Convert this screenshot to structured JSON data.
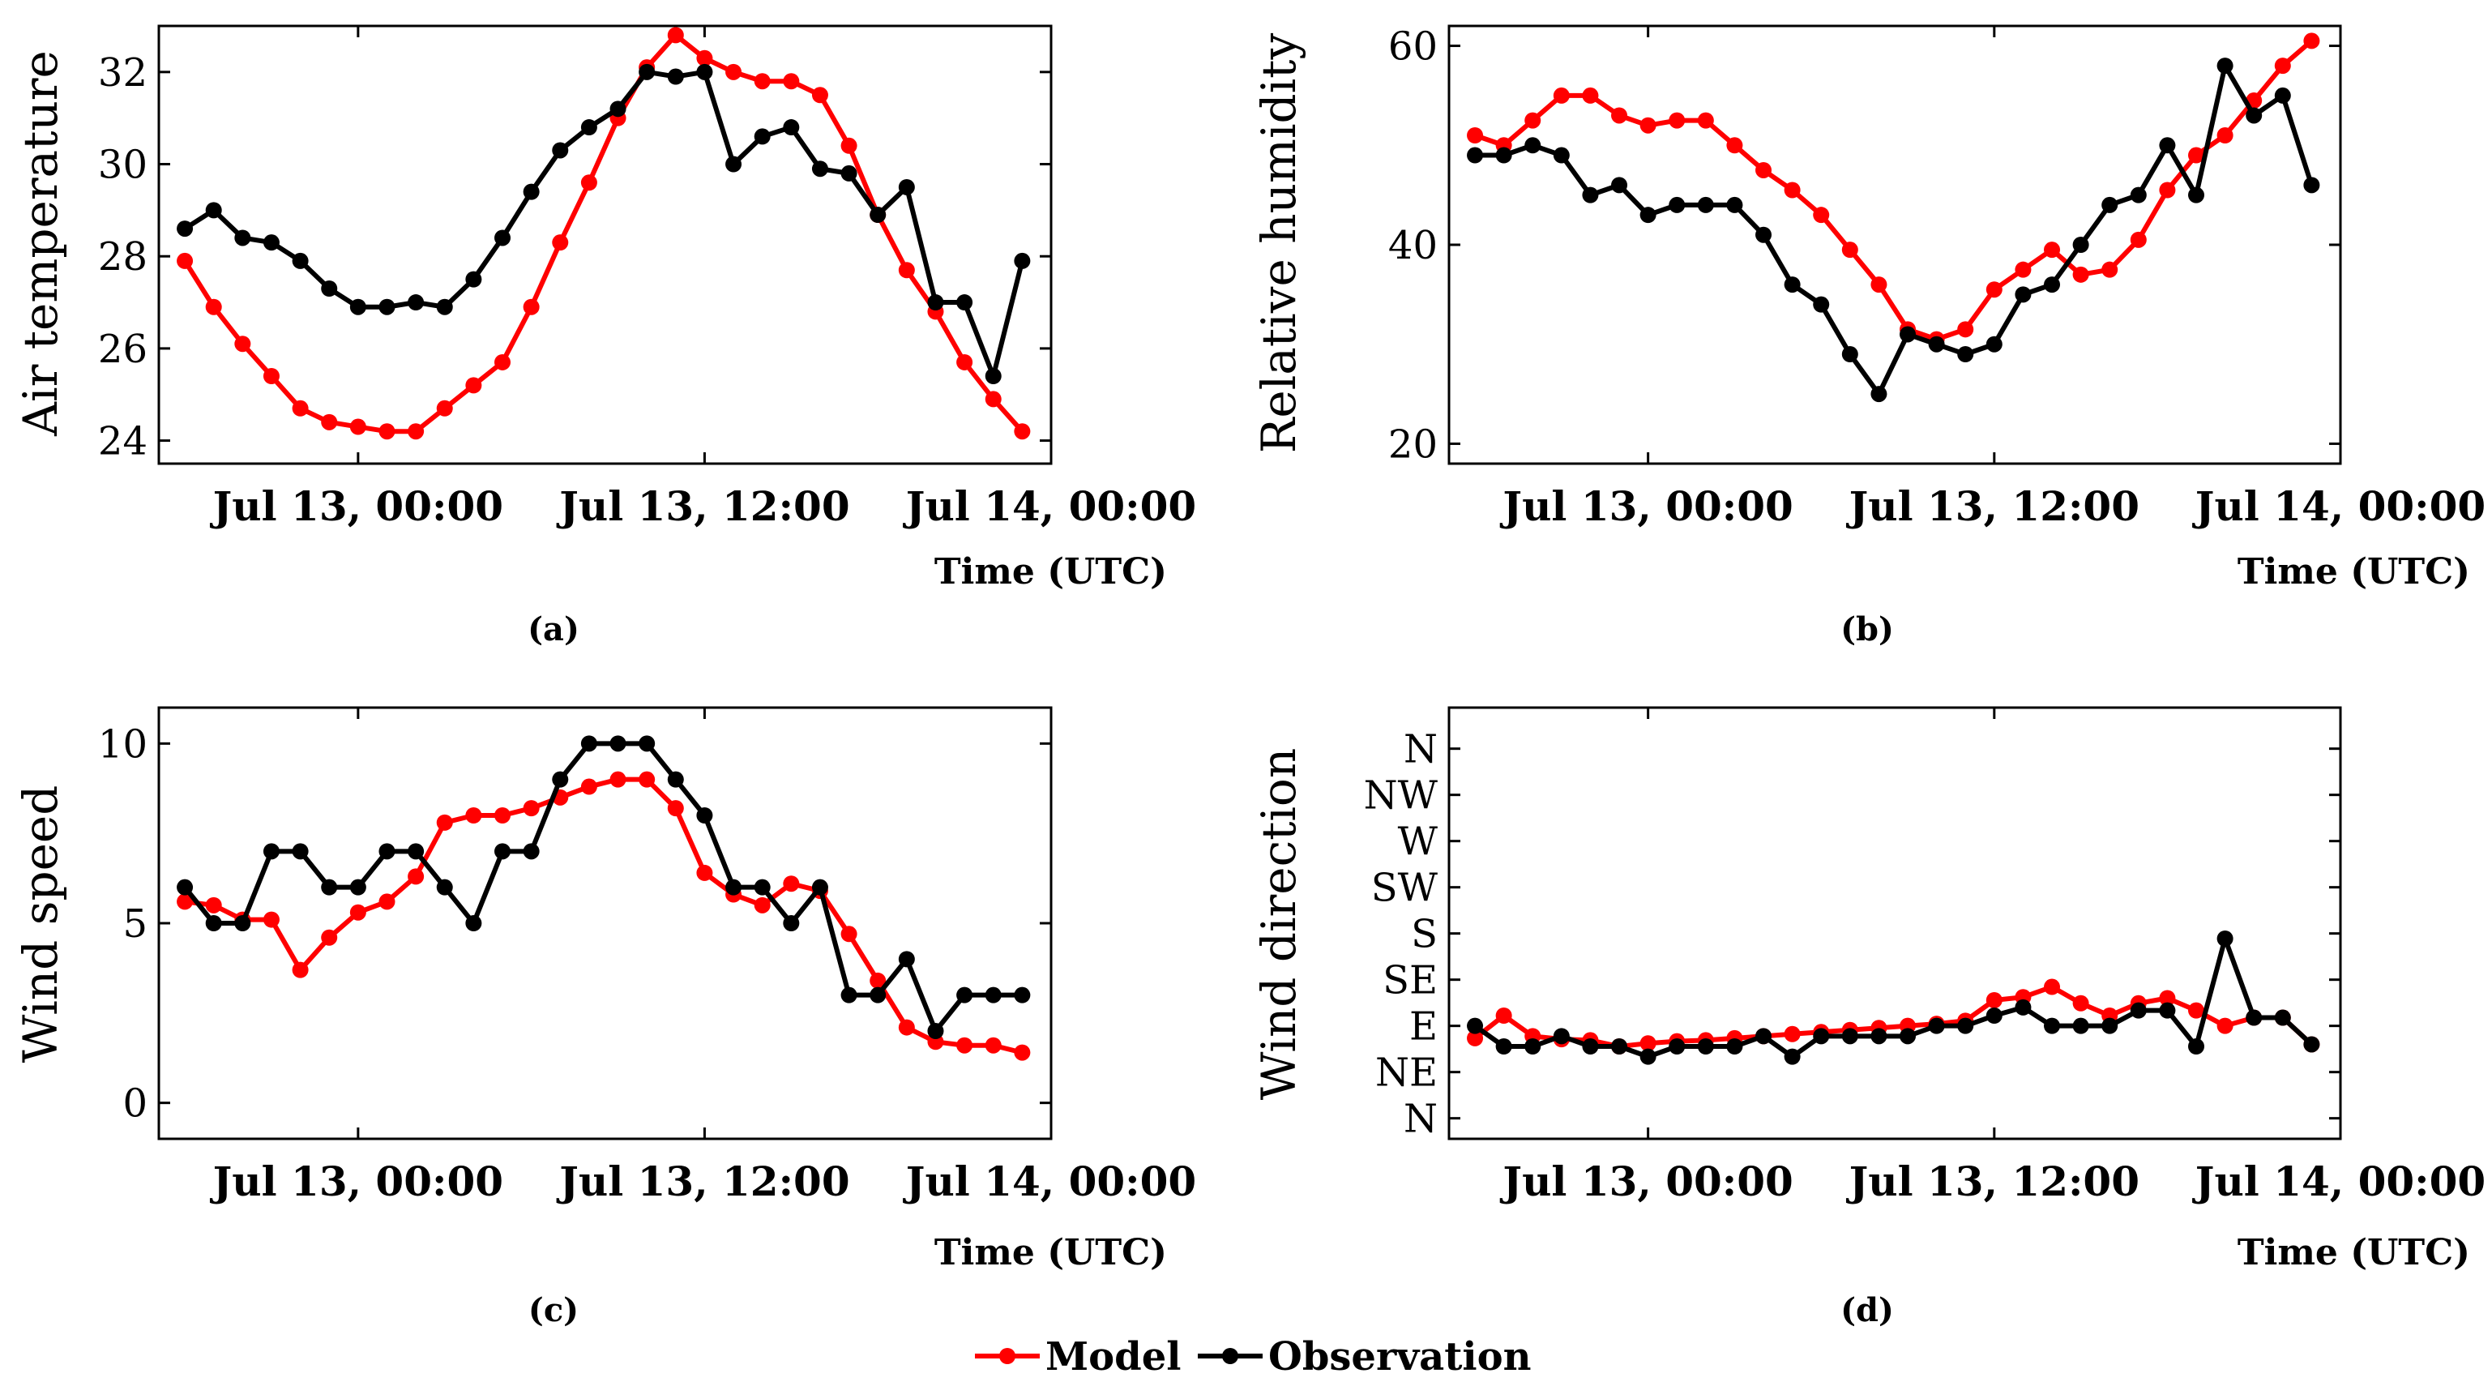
{
  "legend": {
    "entries": [
      {
        "name": "Model",
        "color": "#ff0000"
      },
      {
        "name": "Observation",
        "color": "#000000"
      }
    ]
  },
  "chart_data": [
    {
      "type": "line",
      "panel_label": "(a)",
      "ylabel": "Air temperature",
      "xlabel": "Time (UTC)",
      "x_tick_labels": [
        "Jul 13, 00:00",
        "Jul 13, 12:00",
        "Jul 14, 00:00"
      ],
      "x_tick_hours": [
        6,
        18,
        30
      ],
      "x_unit": "hours since Jul 12, 18:00 UTC",
      "xlim": [
        -0.9,
        30
      ],
      "ylim": [
        23.5,
        33
      ],
      "y_ticks": [
        24,
        26,
        28,
        30,
        32
      ],
      "y_tick_labels": [
        "24",
        "26",
        "28",
        "30",
        "32"
      ],
      "series": [
        {
          "name": "Model",
          "color": "#ff0000",
          "values": [
            27.9,
            26.9,
            26.1,
            25.4,
            24.7,
            24.4,
            24.3,
            24.2,
            24.2,
            24.7,
            25.2,
            25.7,
            26.9,
            28.3,
            29.6,
            31.0,
            32.1,
            32.8,
            32.3,
            32.0,
            31.8,
            31.8,
            31.5,
            30.4,
            28.9,
            27.7,
            26.8,
            25.7,
            24.9,
            24.2
          ]
        },
        {
          "name": "Observation",
          "color": "#000000",
          "values": [
            28.6,
            29.0,
            28.4,
            28.3,
            27.9,
            27.3,
            26.9,
            26.9,
            27.0,
            26.9,
            27.5,
            28.4,
            29.4,
            30.3,
            30.8,
            31.2,
            32.0,
            31.9,
            32.0,
            30.0,
            30.6,
            30.8,
            29.9,
            29.8,
            28.9,
            29.5,
            27.0,
            27.0,
            25.4,
            27.9
          ]
        }
      ]
    },
    {
      "type": "line",
      "panel_label": "(b)",
      "ylabel": "Relative humidity",
      "xlabel": "Time (UTC)",
      "x_tick_labels": [
        "Jul 13, 00:00",
        "Jul 13, 12:00",
        "Jul 14, 00:00"
      ],
      "x_tick_hours": [
        6,
        18,
        30
      ],
      "x_unit": "hours since Jul 12, 18:00 UTC",
      "xlim": [
        -0.9,
        30
      ],
      "ylim": [
        18,
        62
      ],
      "y_ticks": [
        20,
        40,
        60
      ],
      "y_tick_labels": [
        "20",
        "40",
        "60"
      ],
      "series": [
        {
          "name": "Model",
          "color": "#ff0000",
          "values": [
            51,
            50,
            52.5,
            55,
            55,
            53,
            52,
            52.5,
            52.5,
            50,
            47.5,
            45.5,
            43,
            39.5,
            36,
            31.5,
            30.5,
            31.5,
            35.5,
            37.5,
            39.5,
            37,
            37.5,
            40.5,
            45.5,
            49,
            51,
            54.5,
            58,
            60.5
          ]
        },
        {
          "name": "Observation",
          "color": "#000000",
          "values": [
            49,
            49,
            50,
            49,
            45,
            46,
            43,
            44,
            44,
            44,
            41,
            36,
            34,
            29,
            25,
            31,
            30,
            29,
            30,
            35,
            36,
            40,
            44,
            45,
            50,
            45,
            58,
            53,
            55,
            46
          ]
        }
      ]
    },
    {
      "type": "line",
      "panel_label": "(c)",
      "ylabel": "Wind speed",
      "xlabel": "Time (UTC)",
      "x_tick_labels": [
        "Jul 13, 00:00",
        "Jul 13, 12:00",
        "Jul 14, 00:00"
      ],
      "x_tick_hours": [
        6,
        18,
        30
      ],
      "x_unit": "hours since Jul 12, 18:00 UTC",
      "xlim": [
        -0.9,
        30
      ],
      "ylim": [
        -1,
        11
      ],
      "y_ticks": [
        0,
        5,
        10
      ],
      "y_tick_labels": [
        "0",
        "5",
        "10"
      ],
      "series": [
        {
          "name": "Model",
          "color": "#ff0000",
          "values": [
            5.6,
            5.5,
            5.1,
            5.1,
            3.7,
            4.6,
            5.3,
            5.6,
            6.3,
            7.8,
            8.0,
            8.0,
            8.2,
            8.5,
            8.8,
            9.0,
            9.0,
            8.2,
            6.4,
            5.8,
            5.5,
            6.1,
            5.9,
            4.7,
            3.4,
            2.1,
            1.7,
            1.6,
            1.6,
            1.4
          ]
        },
        {
          "name": "Observation",
          "color": "#000000",
          "values": [
            6,
            5,
            5,
            7,
            7,
            6,
            6,
            7,
            7,
            6,
            5,
            7,
            7,
            9,
            10,
            10,
            10,
            9,
            8,
            6,
            6,
            5,
            6,
            3,
            3,
            4,
            2,
            3,
            3,
            3
          ]
        }
      ]
    },
    {
      "type": "line",
      "panel_label": "(d)",
      "ylabel": "Wind direction",
      "xlabel": "Time (UTC)",
      "x_tick_labels": [
        "Jul 13, 00:00",
        "Jul 13, 12:00",
        "Jul 14, 00:00"
      ],
      "x_tick_hours": [
        6,
        18,
        30
      ],
      "x_unit": "hours since Jul 12, 18:00 UTC",
      "xlim": [
        -0.9,
        30
      ],
      "y_unit": "degrees",
      "ylim": [
        -20,
        400
      ],
      "y_ticks": [
        0,
        45,
        90,
        135,
        180,
        225,
        270,
        315,
        360
      ],
      "y_tick_labels": [
        "N",
        "NE",
        "E",
        "SE",
        "S",
        "SW",
        "W",
        "NW",
        "N"
      ],
      "series": [
        {
          "name": "Model",
          "color": "#ff0000",
          "values": [
            78,
            100,
            80,
            77,
            76,
            70,
            73,
            75,
            76,
            78,
            80,
            82,
            84,
            86,
            88,
            90,
            92,
            95,
            115,
            118,
            128,
            112,
            100,
            112,
            117,
            105,
            90,
            98,
            98,
            72
          ]
        },
        {
          "name": "Observation",
          "color": "#000000",
          "values": [
            90,
            70,
            70,
            80,
            70,
            70,
            60,
            70,
            70,
            70,
            80,
            60,
            80,
            80,
            80,
            80,
            90,
            90,
            100,
            108,
            90,
            90,
            90,
            105,
            105,
            70,
            175,
            98,
            98,
            72
          ]
        }
      ]
    }
  ]
}
